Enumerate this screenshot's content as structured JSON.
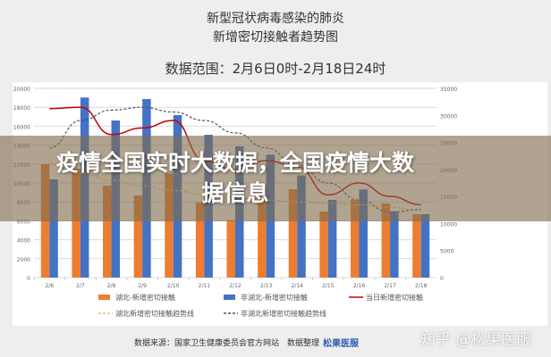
{
  "title_lines": [
    "新型冠状病毒感染的肺炎",
    "新增密切接触者趋势图"
  ],
  "date_range": "数据范围：2月6日0时-2月18日24时",
  "banner": "疫情全国实时大数据，全国疫情大数据信息",
  "source": "数据来源：国家卫生健康委员会官方网站　数据整理",
  "logo": "松果医服",
  "watermark": "知乎 @松果医服",
  "chart_data": {
    "type": "bar",
    "categories": [
      "2/6",
      "2/7",
      "2/8",
      "2/9",
      "2/10",
      "2/11",
      "2/12",
      "2/13",
      "2/14",
      "2/15",
      "2/16",
      "2/17",
      "2/18"
    ],
    "ylim": [
      0,
      20000
    ],
    "y_ticks": [
      0,
      2000,
      4000,
      6000,
      8000,
      10000,
      12000,
      14000,
      16000,
      18000,
      20000
    ],
    "y2lim": [
      0,
      35000
    ],
    "y2_ticks": [
      0,
      5000,
      10000,
      15000,
      20000,
      25000,
      30000,
      35000
    ],
    "grid": true,
    "legend_placement": "bottom",
    "series": [
      {
        "name": "湖北-新增密切接触",
        "type": "bar",
        "axis": "left",
        "color": "#ed7d31",
        "values": [
          12000,
          11500,
          9720,
          8680,
          11000,
          7950,
          6070,
          8360,
          9340,
          6980,
          8200,
          7830,
          6700
        ]
      },
      {
        "name": "非湖北-新增密切接触",
        "type": "bar",
        "axis": "left",
        "color": "#4472c4",
        "values": [
          10380,
          19030,
          16600,
          18870,
          17170,
          15090,
          13870,
          12990,
          10790,
          8210,
          9310,
          7010,
          6700
        ]
      },
      {
        "name": "当日新增密切接触",
        "type": "line",
        "axis": "right",
        "color": "#c00000",
        "values": [
          31250,
          31520,
          26460,
          27670,
          29050,
          21620,
          19970,
          21620,
          20520,
          15290,
          17490,
          15020,
          13480
        ]
      },
      {
        "name": "湖北新增密切接触趋势线",
        "type": "line",
        "style": "dashed",
        "axis": "left",
        "color": "#e8c84a",
        "values": [
          12000,
          11000,
          10300,
          9700,
          9200,
          8800,
          8450,
          8200,
          8000,
          7850,
          7700,
          7450,
          7100
        ]
      },
      {
        "name": "非湖北新增密切接触趋势线",
        "type": "line",
        "style": "dashed",
        "axis": "left",
        "color": "#44546a",
        "values": [
          13700,
          16600,
          17700,
          18000,
          17500,
          16600,
          15300,
          13700,
          11900,
          10000,
          8200,
          6900,
          7200
        ]
      }
    ]
  }
}
